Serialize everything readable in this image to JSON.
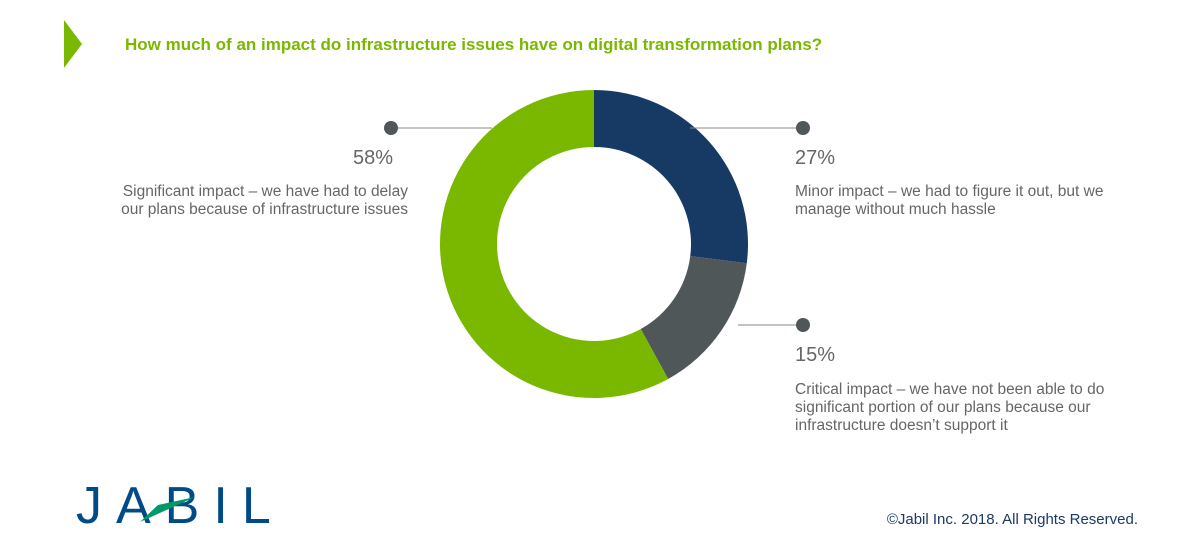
{
  "header": {
    "title": "How much of an impact do infrastructure issues have on digital transformation plans?"
  },
  "chart_data": {
    "type": "pie",
    "variant": "donut",
    "title": "How much of an impact do infrastructure issues have on digital transformation plans?",
    "slices": [
      {
        "label": "Minor impact – we had to figure it out, but we manage without much hassle",
        "value": 27,
        "value_label": "27%",
        "color": "#173a64"
      },
      {
        "label": "Critical impact – we have not been able to do significant portion of our plans because our infrastructure doesn’t support it",
        "value": 15,
        "value_label": "15%",
        "color": "#505759"
      },
      {
        "label": "Significant impact – we have had to delay our plans because of infrastructure issues",
        "value": 58,
        "value_label": "58%",
        "color": "#7ab800"
      }
    ]
  },
  "footer": {
    "logo_text": "JABIL",
    "copyright": "©Jabil Inc. 2018. All Rights Reserved."
  },
  "colors": {
    "accent": "#7ab800",
    "brand": "#004b87",
    "logo_green": "#009a66"
  }
}
